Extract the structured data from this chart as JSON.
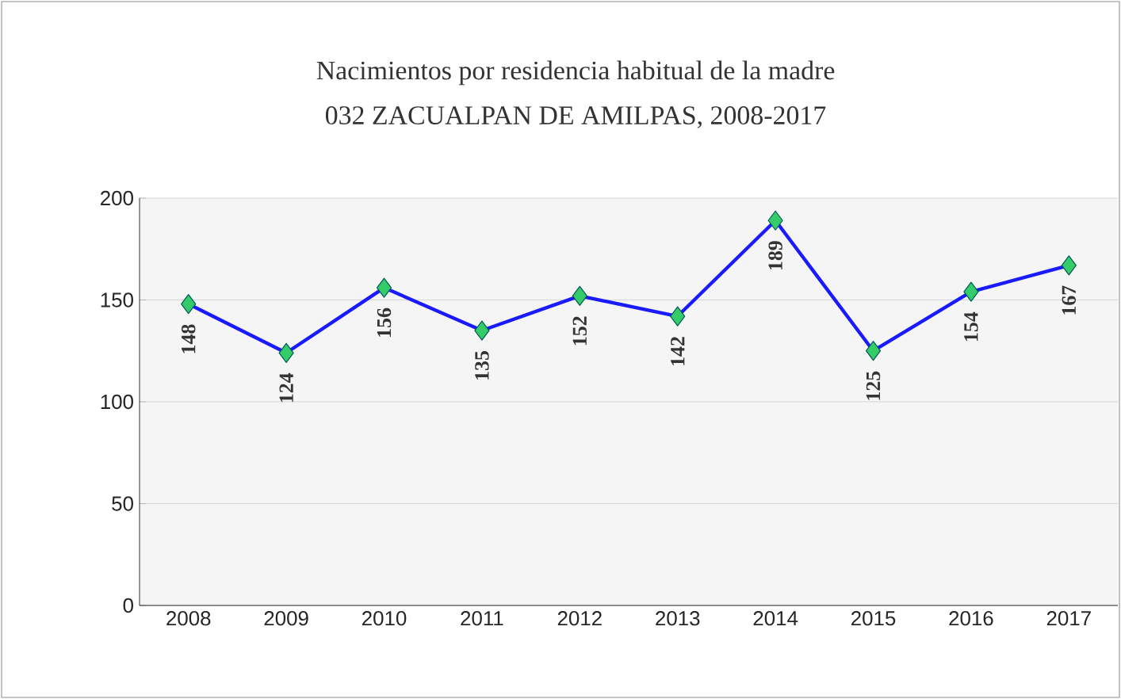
{
  "chart_data": {
    "type": "line",
    "title": "Nacimientos por residencia habitual de la madre",
    "subtitle": "032 ZACUALPAN DE AMILPAS, 2008-2017",
    "categories": [
      "2008",
      "2009",
      "2010",
      "2011",
      "2012",
      "2013",
      "2014",
      "2015",
      "2016",
      "2017"
    ],
    "series": [
      {
        "color": "#1a1aff",
        "values": [
          148,
          124,
          156,
          135,
          152,
          142,
          189,
          125,
          154,
          167
        ]
      }
    ],
    "ylim": [
      0,
      200
    ],
    "yticks": [
      0,
      50,
      100,
      150,
      200
    ],
    "grid": "y",
    "marker": "diamond",
    "line_style": "solid",
    "data_labels": true
  }
}
